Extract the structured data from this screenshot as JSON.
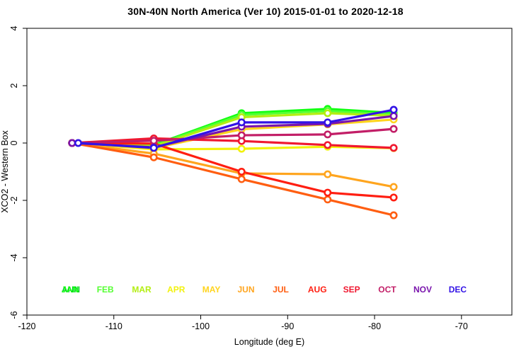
{
  "chart_data": {
    "type": "line",
    "title": "30N-40N North America (Ver 10)   2015-01-01 to 2020-12-18",
    "xlabel": "Longitude (deg E)",
    "ylabel": "XCO2 - Western Box",
    "xlim": [
      -120,
      -64.2
    ],
    "ylim": [
      -6,
      4
    ],
    "xticks": [
      -120,
      -110,
      -100,
      -90,
      -80,
      -70
    ],
    "yticks": [
      4,
      2,
      0,
      -2,
      -4,
      -6
    ],
    "grid": false,
    "marker": "open-circle",
    "x": [
      -114.8,
      -105.4,
      -95.3,
      -85.4,
      -77.8
    ],
    "series": [
      {
        "name": "ANN",
        "color": "#00CC22",
        "values": [
          0,
          -0.06,
          1.01,
          1.16,
          1.03
        ]
      },
      {
        "name": "JAN",
        "color": "#11FF11",
        "values": [
          0,
          -0.07,
          1.04,
          1.19,
          1.05
        ]
      },
      {
        "name": "FEB",
        "color": "#55FF33",
        "values": [
          0,
          -0.08,
          0.98,
          1.12,
          1.0
        ]
      },
      {
        "name": "MAR",
        "color": "#B3EE11",
        "values": [
          0,
          -0.12,
          0.9,
          1.04,
          0.95
        ]
      },
      {
        "name": "APR",
        "color": "#F2F20D",
        "values": [
          0,
          -0.22,
          -0.2,
          -0.13,
          -0.18
        ]
      },
      {
        "name": "MAY",
        "color": "#FFD41E",
        "values": [
          0,
          -0.18,
          0.48,
          0.65,
          0.82
        ]
      },
      {
        "name": "JUN",
        "color": "#FFA51E",
        "values": [
          0,
          -0.37,
          -1.06,
          -1.09,
          -1.53
        ]
      },
      {
        "name": "JUL",
        "color": "#FF5E11",
        "values": [
          0,
          -0.5,
          -1.26,
          -1.97,
          -2.52
        ]
      },
      {
        "name": "AUG",
        "color": "#FF1E11",
        "values": [
          0,
          -0.02,
          -1.0,
          -1.73,
          -1.9
        ]
      },
      {
        "name": "SEP",
        "color": "#F01830",
        "values": [
          0,
          0.16,
          0.07,
          -0.07,
          -0.17
        ]
      },
      {
        "name": "OCT",
        "color": "#C21E67",
        "values": [
          0,
          0.08,
          0.27,
          0.3,
          0.49
        ]
      },
      {
        "name": "NOV",
        "color": "#7A15AD",
        "values": [
          0,
          -0.15,
          0.57,
          0.67,
          0.94
        ]
      },
      {
        "name": "DEC",
        "color": "#3213E6",
        "x": [
          -114.1,
          -105.4,
          -95.3,
          -85.4,
          -77.8
        ],
        "values": [
          0,
          -0.17,
          0.72,
          0.72,
          1.16
        ]
      }
    ],
    "legend": {
      "position": "bottom-inside",
      "items": [
        {
          "label": "ANN",
          "color": "#00CC22",
          "slot": 0
        },
        {
          "label": "JAN",
          "color": "#11FF11",
          "slot": 0
        },
        {
          "label": "FEB",
          "color": "#55FF33",
          "slot": 1
        },
        {
          "label": "MAR",
          "color": "#B3EE11",
          "slot": 2
        },
        {
          "label": "APR",
          "color": "#F2F20D",
          "slot": 3
        },
        {
          "label": "MAY",
          "color": "#FFD41E",
          "slot": 4
        },
        {
          "label": "JUN",
          "color": "#FFA51E",
          "slot": 5
        },
        {
          "label": "JUL",
          "color": "#FF5E11",
          "slot": 6
        },
        {
          "label": "AUG",
          "color": "#FF1E11",
          "slot": 7
        },
        {
          "label": "SEP",
          "color": "#F01830",
          "slot": 8
        },
        {
          "label": "OCT",
          "color": "#C21E67",
          "slot": 9
        },
        {
          "label": "NOV",
          "color": "#7A15AD",
          "slot": 10
        },
        {
          "label": "DEC",
          "color": "#3213E6",
          "slot": 11
        }
      ]
    }
  }
}
